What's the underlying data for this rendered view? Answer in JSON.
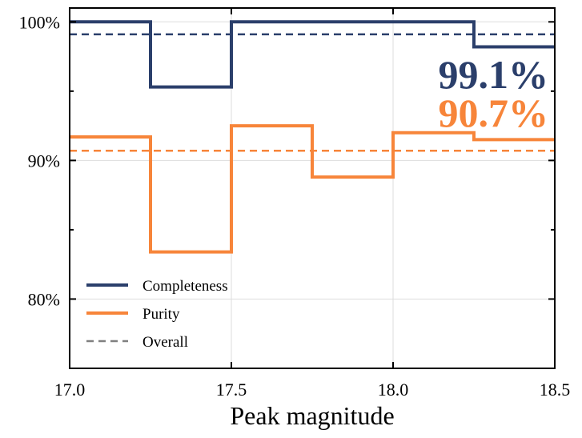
{
  "chart_data": {
    "type": "line",
    "step": "post",
    "title": "",
    "xlabel": "Peak magnitude",
    "ylabel": "",
    "xlim": [
      17.0,
      18.5
    ],
    "ylim": [
      75,
      101
    ],
    "grid": true,
    "x_ticks": [
      17.0,
      17.5,
      18.0,
      18.5
    ],
    "x_tick_labels": [
      "17.0",
      "17.5",
      "18.0",
      "18.5"
    ],
    "y_ticks": [
      80,
      90,
      100
    ],
    "y_tick_labels": [
      "80%",
      "90%",
      "100%"
    ],
    "bin_edges": [
      17.0,
      17.25,
      17.5,
      17.75,
      18.0,
      18.25,
      18.5
    ],
    "series": [
      {
        "name": "Completeness",
        "color": "#2b3f6b",
        "values": [
          100.0,
          95.3,
          100.0,
          100.0,
          100.0,
          98.2
        ],
        "overall": 99.1,
        "overall_label": "99.1%"
      },
      {
        "name": "Purity",
        "color": "#f7853a",
        "values": [
          91.7,
          83.4,
          92.5,
          88.8,
          92.0,
          91.5
        ],
        "overall": 90.7,
        "overall_label": "90.7%"
      }
    ],
    "legend": {
      "placement": "bottom-left",
      "entries": [
        {
          "label": "Completeness",
          "color": "#2b3f6b",
          "style": "solid"
        },
        {
          "label": "Purity",
          "color": "#f7853a",
          "style": "solid"
        },
        {
          "label": "Overall",
          "color": "#808080",
          "style": "dashed"
        }
      ]
    }
  }
}
